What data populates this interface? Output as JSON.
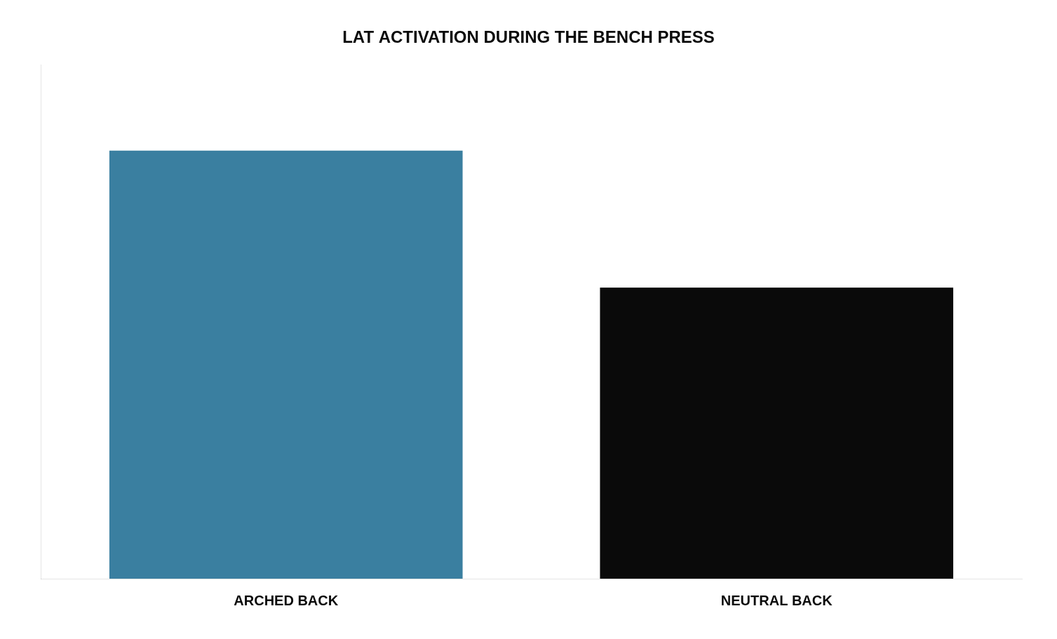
{
  "chart_data": {
    "type": "bar",
    "title": "LAT ACTIVATION DURING THE BENCH PRESS",
    "categories": [
      "ARCHED BACK",
      "NEUTRAL BACK"
    ],
    "values": [
      100,
      68
    ],
    "colors": [
      "#3a7fa0",
      "#0a0a0a"
    ],
    "ylim": [
      0,
      120
    ],
    "grid": false,
    "tick_labels": "x"
  }
}
